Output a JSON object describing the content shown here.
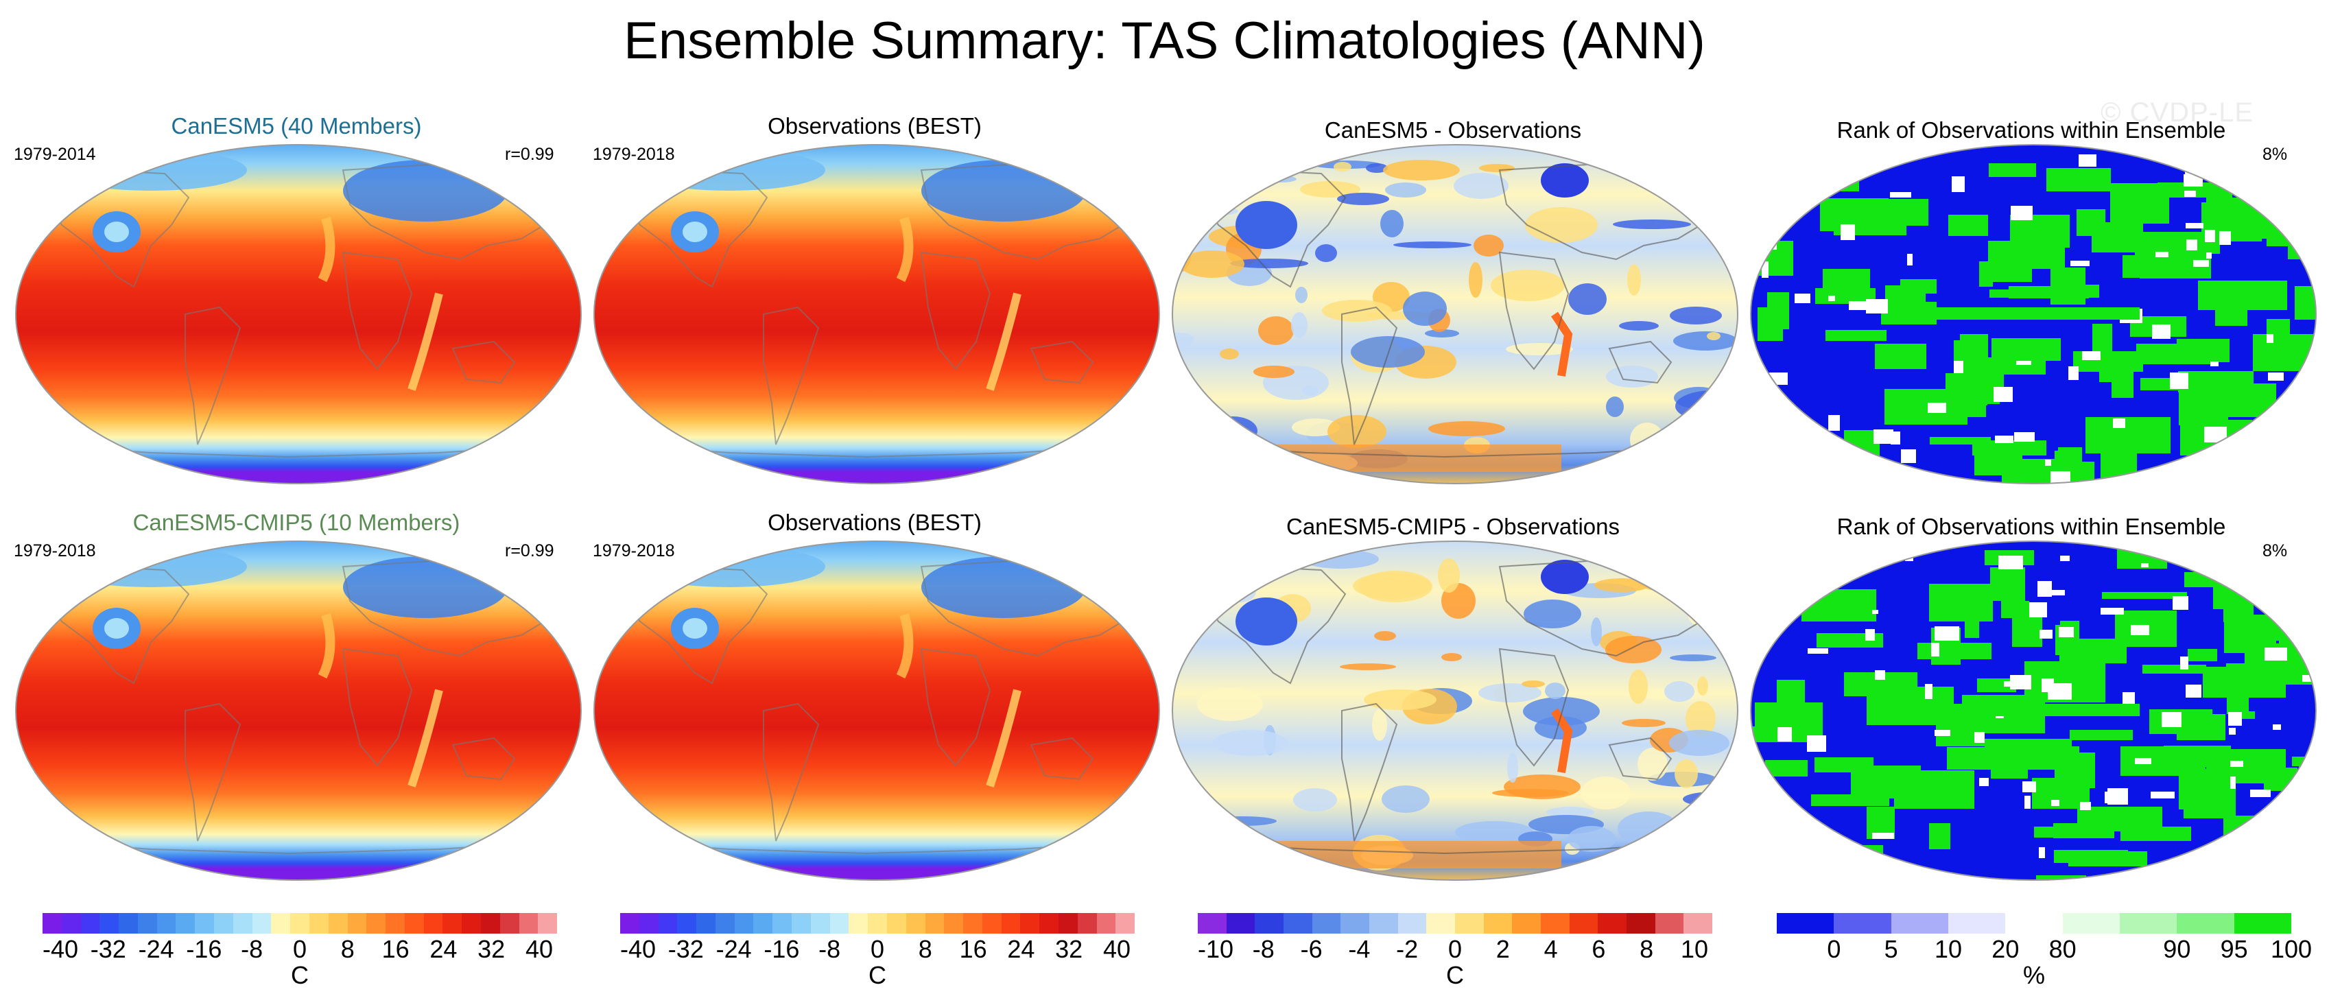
{
  "figure": {
    "title": "Ensemble Summary: TAS Climatologies (ANN)",
    "watermark": "© CVDP-LE"
  },
  "rows": [
    {
      "model": {
        "title": "CanESM5 (40 Members)",
        "period": "1979-2014",
        "correlation": "r=0.99",
        "title_color": "#1d6f94"
      },
      "obs": {
        "title": "Observations (BEST)",
        "period": "1979-2018"
      },
      "diff": {
        "title": "CanESM5 - Observations"
      },
      "rank": {
        "title": "Rank of Observations within Ensemble",
        "percent": "8%"
      }
    },
    {
      "model": {
        "title": "CanESM5-CMIP5 (10 Members)",
        "period": "1979-2018",
        "correlation": "r=0.99",
        "title_color": "#5b8a55"
      },
      "obs": {
        "title": "Observations (BEST)",
        "period": "1979-2018"
      },
      "diff": {
        "title": "CanESM5-CMIP5 - Observations"
      },
      "rank": {
        "title": "Rank of Observations within Ensemble",
        "percent": "8%"
      }
    }
  ],
  "colorbars": [
    {
      "name": "climatology-a",
      "unit": "C",
      "ticks": [
        "-40",
        "-32",
        "-24",
        "-16",
        "-8",
        "0",
        "8",
        "16",
        "24",
        "32",
        "40"
      ],
      "colors": [
        "#7a1de8",
        "#6226f0",
        "#4338f5",
        "#2f50f2",
        "#3068ea",
        "#3d80ea",
        "#4a95ee",
        "#5aaaf2",
        "#74bff5",
        "#8ed1f8",
        "#a8e0fa",
        "#c3ecfb",
        "#fff6b3",
        "#ffe98a",
        "#ffd869",
        "#ffc24e",
        "#ffa93c",
        "#ff8f2e",
        "#ff7424",
        "#ff5a1b",
        "#f94115",
        "#ee2c12",
        "#e01b12",
        "#cc1417",
        "#d83a3f",
        "#ec6f73",
        "#f7a3a6"
      ]
    },
    {
      "name": "climatology-b",
      "unit": "C",
      "ticks": [
        "-40",
        "-32",
        "-24",
        "-16",
        "-8",
        "0",
        "8",
        "16",
        "24",
        "32",
        "40"
      ],
      "colors": [
        "#7a1de8",
        "#6226f0",
        "#4338f5",
        "#2f50f2",
        "#3068ea",
        "#3d80ea",
        "#4a95ee",
        "#5aaaf2",
        "#74bff5",
        "#8ed1f8",
        "#a8e0fa",
        "#c3ecfb",
        "#fff6b3",
        "#ffe98a",
        "#ffd869",
        "#ffc24e",
        "#ffa93c",
        "#ff8f2e",
        "#ff7424",
        "#ff5a1b",
        "#f94115",
        "#ee2c12",
        "#e01b12",
        "#cc1417",
        "#d83a3f",
        "#ec6f73",
        "#f7a3a6"
      ]
    },
    {
      "name": "difference",
      "unit": "C",
      "ticks": [
        "-10",
        "-8",
        "-6",
        "-4",
        "-2",
        "0",
        "2",
        "4",
        "6",
        "8",
        "10"
      ],
      "colors": [
        "#8a2be2",
        "#3a18d6",
        "#2d3fe0",
        "#3d64e6",
        "#5b8be8",
        "#7fa9ef",
        "#a2c4f4",
        "#c6dcf8",
        "#fff6bf",
        "#ffe07e",
        "#ffc24a",
        "#ff9a2e",
        "#ff6b1e",
        "#f23a12",
        "#d91a10",
        "#b80f0f",
        "#e0595c",
        "#f4a2a5"
      ]
    },
    {
      "name": "rank",
      "unit": "%",
      "ticks": [
        "0",
        "5",
        "10",
        "20",
        "80",
        "90",
        "95",
        "100"
      ],
      "colors": [
        "#0a14e6",
        "#5a5ef0",
        "#aaaef8",
        "#e4e6ff",
        "#ffffff",
        "#e4fbe4",
        "#b4f7b4",
        "#82f282",
        "#14e614"
      ]
    }
  ]
}
